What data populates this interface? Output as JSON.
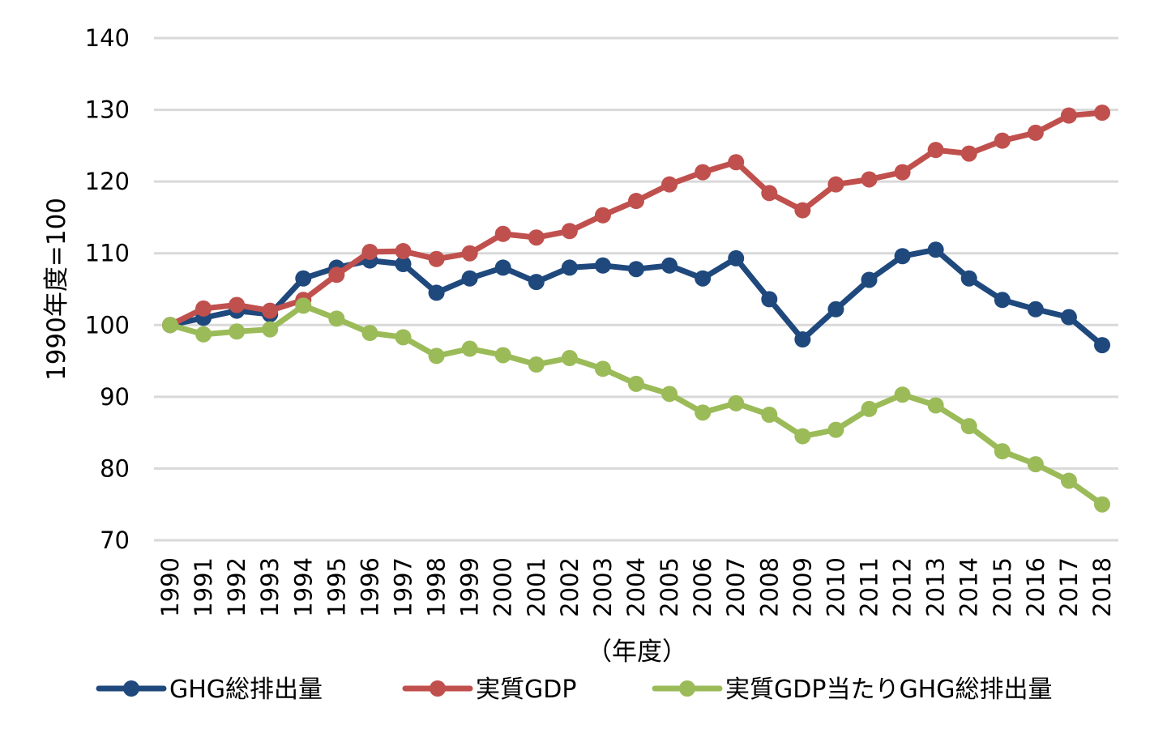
{
  "chart_data": {
    "type": "line",
    "title": "",
    "xlabel": "（年度）",
    "ylabel": "1990年度=100",
    "ylim": [
      70,
      140
    ],
    "yticks": [
      70,
      80,
      90,
      100,
      110,
      120,
      130,
      140
    ],
    "grid": true,
    "legend_position": "bottom",
    "x": [
      "1990",
      "1991",
      "1992",
      "1993",
      "1994",
      "1995",
      "1996",
      "1997",
      "1998",
      "1999",
      "2000",
      "2001",
      "2002",
      "2003",
      "2004",
      "2005",
      "2006",
      "2007",
      "2008",
      "2009",
      "2010",
      "2011",
      "2012",
      "2013",
      "2014",
      "2015",
      "2016",
      "2017",
      "2018"
    ],
    "series": [
      {
        "name": "GHG総排出量",
        "color": "#1F497D",
        "values": [
          100.0,
          101.0,
          102.0,
          101.5,
          106.5,
          108.0,
          109.0,
          108.5,
          104.5,
          106.5,
          108.0,
          106.0,
          108.0,
          108.3,
          107.8,
          108.3,
          106.5,
          109.3,
          103.6,
          98.0,
          102.2,
          106.3,
          109.6,
          110.5,
          106.5,
          103.5,
          102.2,
          101.1,
          97.2
        ]
      },
      {
        "name": "実質GDP",
        "color": "#C0504D",
        "values": [
          100.0,
          102.3,
          102.8,
          102.0,
          103.5,
          107.0,
          110.2,
          110.3,
          109.2,
          110.0,
          112.7,
          112.2,
          113.1,
          115.3,
          117.3,
          119.6,
          121.3,
          122.7,
          118.4,
          116.0,
          119.6,
          120.3,
          121.3,
          124.4,
          123.9,
          125.7,
          126.8,
          129.2,
          129.6
        ]
      },
      {
        "name": "実質GDP当たりGHG総排出量",
        "color": "#9BBB59",
        "values": [
          100.0,
          98.7,
          99.1,
          99.4,
          102.7,
          100.9,
          98.9,
          98.3,
          95.7,
          96.7,
          95.8,
          94.5,
          95.4,
          93.9,
          91.8,
          90.4,
          87.8,
          89.1,
          87.5,
          84.5,
          85.4,
          88.3,
          90.3,
          88.8,
          85.9,
          82.4,
          80.6,
          78.3,
          75.0
        ]
      }
    ]
  }
}
